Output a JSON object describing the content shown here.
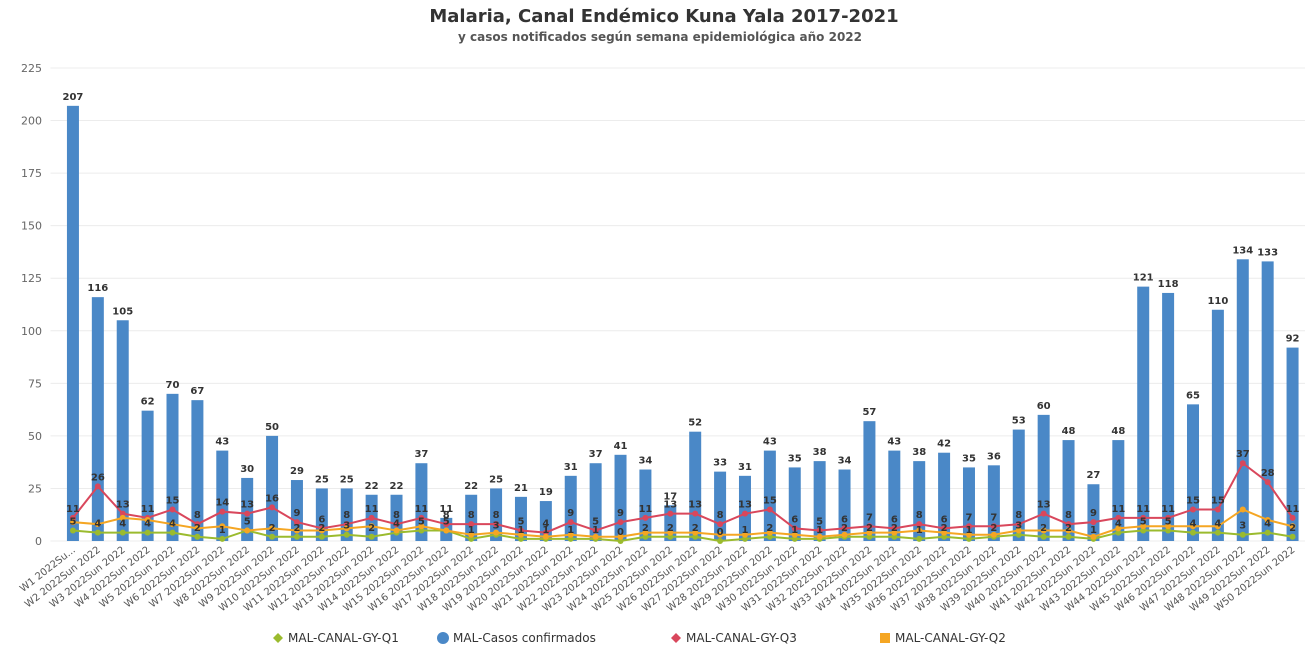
{
  "chart_data": {
    "type": "bar",
    "title": "Malaria, Canal Endémico Kuna Yala 2017-2021",
    "subtitle": "y casos notificados según semana epidemiológica año 2022",
    "categories": [
      "W1 2022Su...",
      "W2 2022Sun 2022",
      "W3 2022Sun 2022",
      "W4 2022Sun 2022",
      "W5 2022Sun 2022",
      "W6 2022Sun 2022",
      "W7 2022Sun 2022",
      "W8 2022Sun 2022",
      "W9 2022Sun 2022",
      "W10 2022Sun 2022",
      "W11 2022Sun 2022",
      "W12 2022Sun 2022",
      "W13 2022Sun 2022",
      "W14 2022Sun 2022",
      "W15 2022Sun 2022",
      "W16 2022Sun 2022",
      "W17 2022Sun 2022",
      "W18 2022Sun 2022",
      "W19 2022Sun 2022",
      "W20 2022Sun 2022",
      "W21 2022Sun 2022",
      "W22 2022Sun 2022",
      "W23 2022Sun 2022",
      "W24 2022Sun 2022",
      "W25 2022Sun 2022",
      "W26 2022Sun 2022",
      "W27 2022Sun 2022",
      "W28 2022Sun 2022",
      "W29 2022Sun 2022",
      "W30 2022Sun 2022",
      "W31 2022Sun 2022",
      "W32 2022Sun 2022",
      "W33 2022Sun 2022",
      "W34 2022Sun 2022",
      "W35 2022Sun 2022",
      "W36 2022Sun 2022",
      "W37 2022Sun 2022",
      "W38 2022Sun 2022",
      "W39 2022Sun 2022",
      "W40 2022Sun 2022",
      "W41 2022Sun 2022",
      "W42 2022Sun 2022",
      "W43 2022Sun 2022",
      "W44 2022Sun 2022",
      "W45 2022Sun 2022",
      "W46 2022Sun 2022",
      "W47 2022Sun 2022",
      "W48 2022Sun 2022",
      "W49 2022Sun 2022",
      "W50 2022Sun 2022"
    ],
    "series": [
      {
        "name": "MAL-CANAL-GY-Q1",
        "type": "line",
        "color": "#9bbb2e",
        "values": [
          5,
          4,
          4,
          4,
          4,
          2,
          1,
          5,
          2,
          2,
          2,
          3,
          2,
          4,
          5,
          5,
          1,
          3,
          1,
          1,
          1,
          1,
          0,
          2,
          2,
          2,
          0,
          1,
          2,
          1,
          1,
          2,
          2,
          2,
          1,
          2,
          1,
          2,
          3,
          2,
          2,
          1,
          4,
          5,
          5,
          4,
          4,
          3,
          4,
          2
        ]
      },
      {
        "name": "MAL-Casos confirmados",
        "type": "bar",
        "color": "#4a88c7",
        "values": [
          207,
          116,
          105,
          62,
          70,
          67,
          43,
          30,
          50,
          29,
          25,
          25,
          22,
          22,
          37,
          11,
          22,
          25,
          21,
          19,
          31,
          37,
          41,
          34,
          17,
          52,
          33,
          31,
          43,
          35,
          38,
          34,
          57,
          43,
          38,
          42,
          35,
          36,
          53,
          60,
          48,
          27,
          48,
          121,
          118,
          65,
          110,
          134,
          133,
          92
        ]
      },
      {
        "name": "MAL-CANAL-GY-Q3",
        "type": "line",
        "color": "#d9475c",
        "values": [
          11,
          26,
          13,
          11,
          15,
          8,
          14,
          13,
          16,
          9,
          6,
          8,
          11,
          8,
          11,
          8,
          8,
          8,
          5,
          4,
          9,
          5,
          9,
          11,
          13,
          13,
          8,
          13,
          15,
          6,
          5,
          6,
          7,
          6,
          8,
          6,
          7,
          7,
          8,
          13,
          8,
          9,
          11,
          11,
          11,
          15,
          15,
          37,
          28,
          11
        ]
      },
      {
        "name": "MAL-CANAL-GY-Q2",
        "type": "line",
        "color": "#f5a623",
        "values": [
          9,
          8,
          11,
          10,
          8,
          6,
          7,
          5,
          6,
          5,
          5,
          6,
          7,
          5,
          7,
          5,
          3,
          4,
          3,
          2,
          3,
          2,
          2,
          4,
          4,
          4,
          3,
          3,
          4,
          3,
          2,
          3,
          4,
          4,
          5,
          4,
          3,
          3,
          5,
          5,
          5,
          2,
          6,
          7,
          7,
          7,
          7,
          15,
          10,
          7
        ]
      }
    ],
    "ylim": [
      0,
      225
    ],
    "yticks": [
      0,
      25,
      50,
      75,
      100,
      125,
      150,
      175,
      200,
      225
    ],
    "grid": true
  }
}
